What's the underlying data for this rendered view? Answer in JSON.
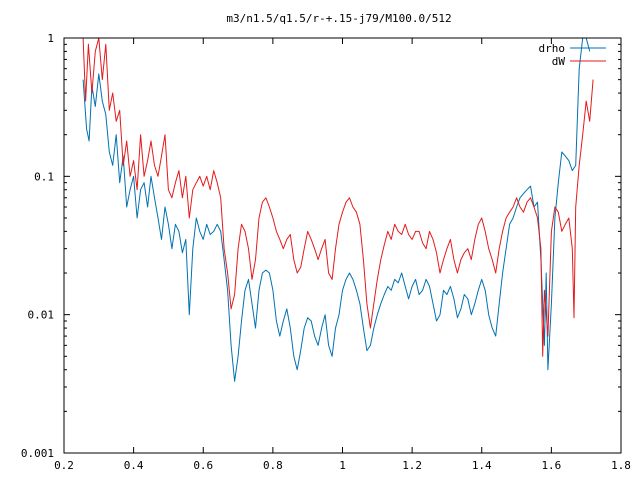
{
  "chart_data": {
    "type": "line",
    "title": "m3/n1.5/q1.5/r-+.15-j79/M100.0/512",
    "xlabel": "",
    "ylabel": "",
    "xlim": [
      0.2,
      1.8
    ],
    "ylim": [
      0.001,
      1
    ],
    "yscale": "log",
    "grid": false,
    "legend_position": "top-right",
    "x_ticks": [
      0.2,
      0.4,
      0.6,
      0.8,
      1.0,
      1.2,
      1.4,
      1.6,
      1.8
    ],
    "x_tick_labels": [
      "0.2",
      "0.4",
      "0.6",
      "0.8",
      "1",
      "1.2",
      "1.4",
      "1.6",
      "1.8"
    ],
    "y_ticks": [
      0.001,
      0.01,
      0.1,
      1
    ],
    "y_tick_labels": [
      "0.001",
      "0.01",
      "0.1",
      "1"
    ],
    "series": [
      {
        "name": "drho",
        "color": "#0072b2",
        "points": [
          [
            0.255,
            0.5
          ],
          [
            0.265,
            0.22
          ],
          [
            0.272,
            0.18
          ],
          [
            0.28,
            0.45
          ],
          [
            0.29,
            0.32
          ],
          [
            0.3,
            0.55
          ],
          [
            0.31,
            0.35
          ],
          [
            0.32,
            0.28
          ],
          [
            0.33,
            0.15
          ],
          [
            0.34,
            0.12
          ],
          [
            0.35,
            0.2
          ],
          [
            0.36,
            0.09
          ],
          [
            0.37,
            0.14
          ],
          [
            0.38,
            0.06
          ],
          [
            0.39,
            0.08
          ],
          [
            0.4,
            0.1
          ],
          [
            0.41,
            0.05
          ],
          [
            0.42,
            0.08
          ],
          [
            0.43,
            0.09
          ],
          [
            0.44,
            0.06
          ],
          [
            0.45,
            0.1
          ],
          [
            0.46,
            0.07
          ],
          [
            0.47,
            0.05
          ],
          [
            0.48,
            0.035
          ],
          [
            0.49,
            0.06
          ],
          [
            0.5,
            0.045
          ],
          [
            0.51,
            0.03
          ],
          [
            0.52,
            0.045
          ],
          [
            0.53,
            0.04
          ],
          [
            0.54,
            0.028
          ],
          [
            0.55,
            0.035
          ],
          [
            0.56,
            0.01
          ],
          [
            0.57,
            0.03
          ],
          [
            0.58,
            0.05
          ],
          [
            0.59,
            0.04
          ],
          [
            0.6,
            0.035
          ],
          [
            0.61,
            0.045
          ],
          [
            0.62,
            0.038
          ],
          [
            0.63,
            0.04
          ],
          [
            0.64,
            0.045
          ],
          [
            0.65,
            0.04
          ],
          [
            0.66,
            0.025
          ],
          [
            0.67,
            0.015
          ],
          [
            0.68,
            0.006
          ],
          [
            0.69,
            0.0033
          ],
          [
            0.7,
            0.005
          ],
          [
            0.71,
            0.009
          ],
          [
            0.72,
            0.015
          ],
          [
            0.73,
            0.018
          ],
          [
            0.74,
            0.012
          ],
          [
            0.75,
            0.008
          ],
          [
            0.76,
            0.015
          ],
          [
            0.77,
            0.02
          ],
          [
            0.78,
            0.021
          ],
          [
            0.79,
            0.02
          ],
          [
            0.8,
            0.015
          ],
          [
            0.81,
            0.009
          ],
          [
            0.82,
            0.007
          ],
          [
            0.83,
            0.009
          ],
          [
            0.84,
            0.011
          ],
          [
            0.85,
            0.008
          ],
          [
            0.86,
            0.005
          ],
          [
            0.87,
            0.004
          ],
          [
            0.88,
            0.0055
          ],
          [
            0.89,
            0.008
          ],
          [
            0.9,
            0.0095
          ],
          [
            0.91,
            0.009
          ],
          [
            0.92,
            0.007
          ],
          [
            0.93,
            0.006
          ],
          [
            0.94,
            0.008
          ],
          [
            0.95,
            0.01
          ],
          [
            0.96,
            0.006
          ],
          [
            0.97,
            0.005
          ],
          [
            0.98,
            0.008
          ],
          [
            0.99,
            0.01
          ],
          [
            1.0,
            0.015
          ],
          [
            1.01,
            0.018
          ],
          [
            1.02,
            0.02
          ],
          [
            1.03,
            0.018
          ],
          [
            1.04,
            0.015
          ],
          [
            1.05,
            0.012
          ],
          [
            1.06,
            0.008
          ],
          [
            1.07,
            0.0055
          ],
          [
            1.08,
            0.006
          ],
          [
            1.09,
            0.008
          ],
          [
            1.1,
            0.01
          ],
          [
            1.11,
            0.012
          ],
          [
            1.12,
            0.014
          ],
          [
            1.13,
            0.016
          ],
          [
            1.14,
            0.015
          ],
          [
            1.15,
            0.018
          ],
          [
            1.16,
            0.017
          ],
          [
            1.17,
            0.02
          ],
          [
            1.18,
            0.016
          ],
          [
            1.19,
            0.013
          ],
          [
            1.2,
            0.016
          ],
          [
            1.21,
            0.018
          ],
          [
            1.22,
            0.014
          ],
          [
            1.23,
            0.015
          ],
          [
            1.24,
            0.018
          ],
          [
            1.25,
            0.016
          ],
          [
            1.26,
            0.012
          ],
          [
            1.27,
            0.009
          ],
          [
            1.28,
            0.01
          ],
          [
            1.29,
            0.015
          ],
          [
            1.3,
            0.014
          ],
          [
            1.31,
            0.016
          ],
          [
            1.32,
            0.013
          ],
          [
            1.33,
            0.0095
          ],
          [
            1.34,
            0.011
          ],
          [
            1.35,
            0.014
          ],
          [
            1.36,
            0.013
          ],
          [
            1.37,
            0.01
          ],
          [
            1.38,
            0.012
          ],
          [
            1.39,
            0.015
          ],
          [
            1.4,
            0.018
          ],
          [
            1.41,
            0.015
          ],
          [
            1.42,
            0.01
          ],
          [
            1.43,
            0.008
          ],
          [
            1.44,
            0.007
          ],
          [
            1.45,
            0.012
          ],
          [
            1.46,
            0.02
          ],
          [
            1.47,
            0.03
          ],
          [
            1.48,
            0.045
          ],
          [
            1.49,
            0.05
          ],
          [
            1.5,
            0.06
          ],
          [
            1.51,
            0.07
          ],
          [
            1.52,
            0.075
          ],
          [
            1.53,
            0.08
          ],
          [
            1.54,
            0.085
          ],
          [
            1.55,
            0.06
          ],
          [
            1.56,
            0.065
          ],
          [
            1.57,
            0.025
          ],
          [
            1.58,
            0.006
          ],
          [
            1.585,
            0.02
          ],
          [
            1.59,
            0.004
          ],
          [
            1.6,
            0.012
          ],
          [
            1.61,
            0.05
          ],
          [
            1.62,
            0.09
          ],
          [
            1.63,
            0.15
          ],
          [
            1.64,
            0.14
          ],
          [
            1.65,
            0.13
          ],
          [
            1.66,
            0.11
          ],
          [
            1.67,
            0.12
          ],
          [
            1.68,
            0.6
          ],
          [
            1.69,
            1.0
          ],
          [
            1.7,
            1.0
          ],
          [
            1.71,
            0.8
          ]
        ]
      },
      {
        "name": "dW",
        "color": "#e41a1c",
        "points": [
          [
            0.255,
            1.0
          ],
          [
            0.262,
            0.35
          ],
          [
            0.27,
            0.9
          ],
          [
            0.28,
            0.4
          ],
          [
            0.29,
            0.8
          ],
          [
            0.3,
            1.0
          ],
          [
            0.31,
            0.5
          ],
          [
            0.32,
            0.9
          ],
          [
            0.33,
            0.3
          ],
          [
            0.34,
            0.4
          ],
          [
            0.35,
            0.25
          ],
          [
            0.36,
            0.3
          ],
          [
            0.37,
            0.12
          ],
          [
            0.38,
            0.18
          ],
          [
            0.39,
            0.1
          ],
          [
            0.4,
            0.13
          ],
          [
            0.41,
            0.08
          ],
          [
            0.42,
            0.2
          ],
          [
            0.43,
            0.1
          ],
          [
            0.44,
            0.13
          ],
          [
            0.45,
            0.18
          ],
          [
            0.46,
            0.12
          ],
          [
            0.47,
            0.1
          ],
          [
            0.48,
            0.14
          ],
          [
            0.49,
            0.2
          ],
          [
            0.5,
            0.08
          ],
          [
            0.51,
            0.07
          ],
          [
            0.52,
            0.09
          ],
          [
            0.53,
            0.11
          ],
          [
            0.54,
            0.07
          ],
          [
            0.55,
            0.1
          ],
          [
            0.56,
            0.05
          ],
          [
            0.57,
            0.08
          ],
          [
            0.58,
            0.09
          ],
          [
            0.59,
            0.1
          ],
          [
            0.6,
            0.085
          ],
          [
            0.61,
            0.1
          ],
          [
            0.62,
            0.08
          ],
          [
            0.63,
            0.11
          ],
          [
            0.64,
            0.09
          ],
          [
            0.65,
            0.07
          ],
          [
            0.66,
            0.03
          ],
          [
            0.67,
            0.02
          ],
          [
            0.68,
            0.011
          ],
          [
            0.69,
            0.014
          ],
          [
            0.7,
            0.03
          ],
          [
            0.71,
            0.045
          ],
          [
            0.72,
            0.04
          ],
          [
            0.73,
            0.03
          ],
          [
            0.74,
            0.018
          ],
          [
            0.75,
            0.025
          ],
          [
            0.76,
            0.05
          ],
          [
            0.77,
            0.065
          ],
          [
            0.78,
            0.07
          ],
          [
            0.79,
            0.06
          ],
          [
            0.8,
            0.05
          ],
          [
            0.81,
            0.04
          ],
          [
            0.82,
            0.035
          ],
          [
            0.83,
            0.03
          ],
          [
            0.84,
            0.035
          ],
          [
            0.85,
            0.038
          ],
          [
            0.86,
            0.025
          ],
          [
            0.87,
            0.02
          ],
          [
            0.88,
            0.022
          ],
          [
            0.89,
            0.03
          ],
          [
            0.9,
            0.04
          ],
          [
            0.91,
            0.035
          ],
          [
            0.92,
            0.03
          ],
          [
            0.93,
            0.025
          ],
          [
            0.94,
            0.03
          ],
          [
            0.95,
            0.035
          ],
          [
            0.96,
            0.02
          ],
          [
            0.97,
            0.018
          ],
          [
            0.98,
            0.03
          ],
          [
            0.99,
            0.045
          ],
          [
            1.0,
            0.055
          ],
          [
            1.01,
            0.065
          ],
          [
            1.02,
            0.07
          ],
          [
            1.03,
            0.06
          ],
          [
            1.04,
            0.055
          ],
          [
            1.05,
            0.045
          ],
          [
            1.06,
            0.025
          ],
          [
            1.07,
            0.012
          ],
          [
            1.08,
            0.008
          ],
          [
            1.09,
            0.012
          ],
          [
            1.1,
            0.018
          ],
          [
            1.11,
            0.025
          ],
          [
            1.12,
            0.032
          ],
          [
            1.13,
            0.04
          ],
          [
            1.14,
            0.035
          ],
          [
            1.15,
            0.045
          ],
          [
            1.16,
            0.04
          ],
          [
            1.17,
            0.038
          ],
          [
            1.18,
            0.045
          ],
          [
            1.19,
            0.038
          ],
          [
            1.2,
            0.035
          ],
          [
            1.21,
            0.04
          ],
          [
            1.22,
            0.04
          ],
          [
            1.23,
            0.033
          ],
          [
            1.24,
            0.03
          ],
          [
            1.25,
            0.04
          ],
          [
            1.26,
            0.035
          ],
          [
            1.27,
            0.028
          ],
          [
            1.28,
            0.02
          ],
          [
            1.29,
            0.025
          ],
          [
            1.3,
            0.03
          ],
          [
            1.31,
            0.035
          ],
          [
            1.32,
            0.025
          ],
          [
            1.33,
            0.02
          ],
          [
            1.34,
            0.025
          ],
          [
            1.35,
            0.028
          ],
          [
            1.36,
            0.03
          ],
          [
            1.37,
            0.025
          ],
          [
            1.38,
            0.035
          ],
          [
            1.39,
            0.045
          ],
          [
            1.4,
            0.05
          ],
          [
            1.41,
            0.04
          ],
          [
            1.42,
            0.03
          ],
          [
            1.43,
            0.025
          ],
          [
            1.44,
            0.02
          ],
          [
            1.45,
            0.03
          ],
          [
            1.46,
            0.04
          ],
          [
            1.47,
            0.05
          ],
          [
            1.48,
            0.055
          ],
          [
            1.49,
            0.06
          ],
          [
            1.5,
            0.07
          ],
          [
            1.51,
            0.06
          ],
          [
            1.52,
            0.055
          ],
          [
            1.53,
            0.065
          ],
          [
            1.54,
            0.07
          ],
          [
            1.55,
            0.06
          ],
          [
            1.56,
            0.05
          ],
          [
            1.57,
            0.03
          ],
          [
            1.575,
            0.005
          ],
          [
            1.58,
            0.015
          ],
          [
            1.59,
            0.007
          ],
          [
            1.6,
            0.04
          ],
          [
            1.61,
            0.06
          ],
          [
            1.62,
            0.055
          ],
          [
            1.63,
            0.04
          ],
          [
            1.64,
            0.045
          ],
          [
            1.65,
            0.05
          ],
          [
            1.66,
            0.03
          ],
          [
            1.665,
            0.0095
          ],
          [
            1.67,
            0.06
          ],
          [
            1.68,
            0.12
          ],
          [
            1.69,
            0.2
          ],
          [
            1.7,
            0.35
          ],
          [
            1.71,
            0.25
          ],
          [
            1.72,
            0.5
          ]
        ]
      }
    ]
  }
}
